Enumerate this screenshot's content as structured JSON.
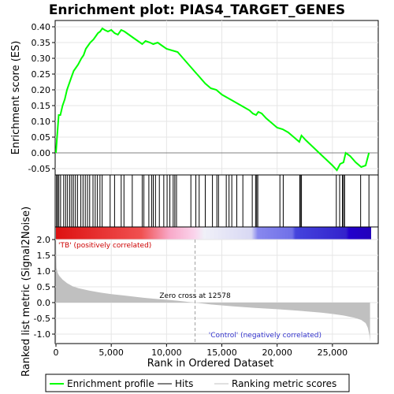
{
  "chart_data": [
    {
      "type": "line",
      "title": "Enrichment plot: PIAS4_TARGET_GENES",
      "ylabel": "Enrichment score (ES)",
      "xlim": [
        0,
        28500
      ],
      "ylim": [
        -0.07,
        0.42
      ],
      "yticks": [
        "-0.05",
        "0.00",
        "0.05",
        "0.10",
        "0.15",
        "0.20",
        "0.25",
        "0.30",
        "0.35",
        "0.40"
      ],
      "ytick_values": [
        -0.05,
        0.0,
        0.05,
        0.1,
        0.15,
        0.2,
        0.25,
        0.3,
        0.35,
        0.4
      ],
      "grid": true,
      "series": [
        {
          "name": "Enrichment profile",
          "color": "#00ff00",
          "x": [
            0,
            100,
            250,
            400,
            600,
            800,
            1000,
            1200,
            1400,
            1600,
            1800,
            2000,
            2300,
            2500,
            2700,
            2900,
            3100,
            3400,
            3600,
            3800,
            4000,
            4200,
            4400,
            4700,
            5000,
            5300,
            5600,
            5900,
            6200,
            6600,
            7000,
            7400,
            7800,
            8100,
            8500,
            8800,
            9200,
            9600,
            10000,
            10500,
            11000,
            11500,
            12000,
            12500,
            13000,
            13500,
            14000,
            14500,
            15000,
            15500,
            16000,
            16500,
            17000,
            17500,
            17800,
            18100,
            18300,
            18600,
            19000,
            19500,
            20000,
            20500,
            21000,
            21500,
            22000,
            22200,
            22600,
            23200,
            23800,
            24400,
            25000,
            25400,
            25700,
            26000,
            26200,
            26600,
            27100,
            27600,
            28000,
            28300
          ],
          "y": [
            0.0,
            0.05,
            0.12,
            0.12,
            0.15,
            0.17,
            0.2,
            0.22,
            0.24,
            0.26,
            0.27,
            0.28,
            0.3,
            0.31,
            0.33,
            0.34,
            0.35,
            0.36,
            0.37,
            0.38,
            0.385,
            0.395,
            0.39,
            0.385,
            0.39,
            0.38,
            0.375,
            0.39,
            0.385,
            0.375,
            0.365,
            0.355,
            0.345,
            0.355,
            0.35,
            0.345,
            0.35,
            0.34,
            0.33,
            0.325,
            0.32,
            0.3,
            0.28,
            0.26,
            0.24,
            0.22,
            0.205,
            0.2,
            0.185,
            0.175,
            0.165,
            0.155,
            0.145,
            0.135,
            0.125,
            0.12,
            0.13,
            0.125,
            0.11,
            0.095,
            0.08,
            0.075,
            0.065,
            0.05,
            0.035,
            0.055,
            0.04,
            0.02,
            0.0,
            -0.02,
            -0.04,
            -0.055,
            -0.035,
            -0.03,
            0.0,
            -0.01,
            -0.03,
            -0.045,
            -0.04,
            0.0
          ]
        }
      ]
    },
    {
      "type": "bar",
      "ylabel": "Ranked list metric (Signal2Noise)",
      "xlabel": "Rank in Ordered Dataset",
      "xlim": [
        0,
        28500
      ],
      "ylim": [
        -1.3,
        2.0
      ],
      "yticks": [
        "-1.0",
        "-0.5",
        "0.0",
        "0.5",
        "1.0",
        "1.5",
        "2.0"
      ],
      "ytick_values": [
        -1.0,
        -0.5,
        0.0,
        0.5,
        1.0,
        1.5,
        2.0
      ],
      "xticks": [
        "0",
        "5,000",
        "10,000",
        "15,000",
        "20,000",
        "25,000"
      ],
      "xtick_values": [
        0,
        5000,
        10000,
        15000,
        20000,
        25000
      ],
      "zero_cross": 12578,
      "zero_cross_label": "Zero cross at 12578",
      "positive_label": "'TB' (positively correlated)",
      "negative_label": "'Control' (negatively correlated)",
      "positive_color": "#cc0000",
      "negative_color": "#3333cc",
      "fill_color": "#c0c0c0",
      "metric_profile": {
        "rank": [
          0,
          50,
          150,
          300,
          600,
          1000,
          1500,
          2000,
          3000,
          4000,
          5000,
          6000,
          7000,
          8000,
          9000,
          10000,
          11000,
          12000,
          12578,
          14000,
          16000,
          18000,
          20000,
          22000,
          24000,
          25000,
          26000,
          27000,
          27600,
          28000,
          28200,
          28350,
          28400
        ],
        "value": [
          1.9,
          1.1,
          0.95,
          0.85,
          0.73,
          0.62,
          0.52,
          0.46,
          0.38,
          0.32,
          0.27,
          0.23,
          0.19,
          0.15,
          0.12,
          0.09,
          0.06,
          0.02,
          0.0,
          -0.06,
          -0.12,
          -0.17,
          -0.21,
          -0.26,
          -0.32,
          -0.36,
          -0.41,
          -0.48,
          -0.55,
          -0.65,
          -0.8,
          -1.05,
          -1.25
        ]
      }
    },
    {
      "type": "table",
      "name": "hits",
      "hit_ranks": [
        60,
        140,
        260,
        420,
        700,
        880,
        1050,
        1250,
        1420,
        1580,
        1760,
        1950,
        2250,
        2450,
        2650,
        2850,
        3050,
        3350,
        3550,
        3750,
        3980,
        4180,
        4900,
        5300,
        5900,
        6150,
        6900,
        7800,
        7950,
        8400,
        8650,
        8800,
        9000,
        9350,
        9750,
        10050,
        10300,
        10600,
        10750,
        10900,
        12200,
        12650,
        12950,
        13500,
        14150,
        14550,
        14700,
        15400,
        15650,
        15900,
        16350,
        16900,
        17750,
        18050,
        18150,
        18250,
        20250,
        20550,
        22050,
        22100,
        22200,
        25350,
        25650,
        25900,
        26000,
        26100,
        27550,
        28300
      ]
    }
  ],
  "legend": {
    "items": [
      {
        "label": "Enrichment profile",
        "color": "#00ff00"
      },
      {
        "label": "Hits",
        "color": "#000000"
      },
      {
        "label": "Ranking metric scores",
        "color": "#c0c0c0"
      }
    ]
  }
}
